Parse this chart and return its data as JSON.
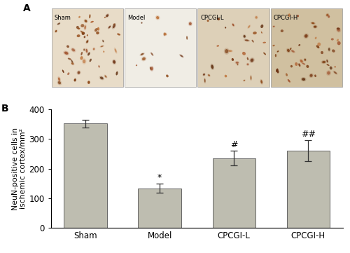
{
  "categories": [
    "Sham",
    "Model",
    "CPCGI-L",
    "CPCGI-H"
  ],
  "values": [
    352,
    133,
    235,
    260
  ],
  "errors": [
    12,
    15,
    25,
    35
  ],
  "bar_color": "#BEBDB0",
  "bar_edgecolor": "#666666",
  "ylabel": "NeuN-positive cells in\nischemic cortex/mm²",
  "ylim": [
    0,
    400
  ],
  "yticks": [
    0,
    100,
    200,
    300,
    400
  ],
  "panel_labels": [
    "Sham",
    "Model",
    "CPCGI-L",
    "CPCGI-H"
  ],
  "panel_bg": [
    "#e8dcc8",
    "#f0ede5",
    "#ddd0b8",
    "#d0c0a0"
  ],
  "cell_densities": [
    55,
    14,
    32,
    48
  ],
  "figure_bg": "#ffffff"
}
